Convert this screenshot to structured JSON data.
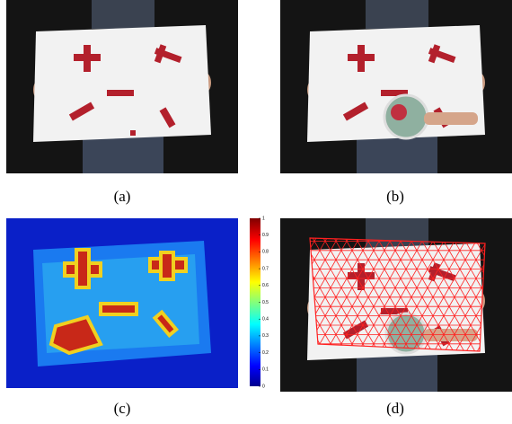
{
  "captions": [
    "(a)",
    "(b)",
    "(c)",
    "(d)"
  ],
  "colorbar": {
    "lim": [
      0,
      1
    ],
    "ticks": [
      0,
      0.1,
      0.2,
      0.3,
      0.4,
      0.5,
      0.6,
      0.7,
      0.8,
      0.9,
      1
    ]
  }
}
